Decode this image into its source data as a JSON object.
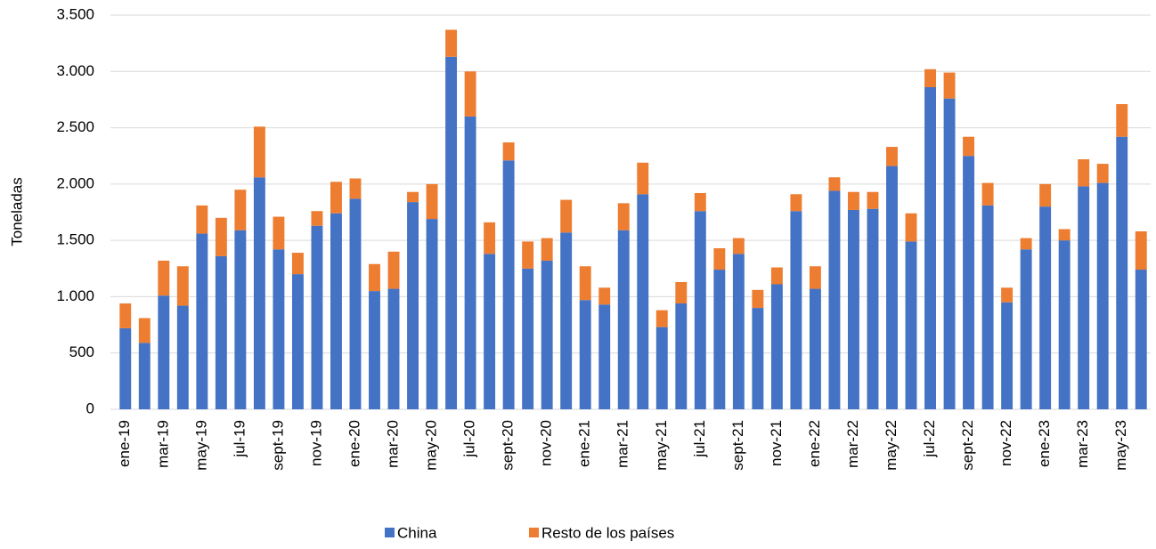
{
  "chart_data": {
    "type": "stacked-bar",
    "y_label": "Toneladas",
    "categories": [
      "ene-19",
      null,
      "mar-19",
      null,
      "may-19",
      null,
      "jul-19",
      null,
      "sept-19",
      null,
      "nov-19",
      null,
      "ene-20",
      null,
      "mar-20",
      null,
      "may-20",
      null,
      "jul-20",
      null,
      "sept-20",
      null,
      "nov-20",
      null,
      "ene-21",
      null,
      "mar-21",
      null,
      "may-21",
      null,
      "jul-21",
      null,
      "sept-21",
      null,
      "nov-21",
      null,
      "ene-22",
      null,
      "mar-22",
      null,
      "may-22",
      null,
      "jul-22",
      null,
      "sept-22",
      null,
      "nov-22",
      null,
      "ene-23",
      null,
      "mar-23",
      null,
      "may-23",
      null
    ],
    "series": [
      {
        "name": "China",
        "color": "#4472c4",
        "values": [
          720,
          590,
          1010,
          920,
          1560,
          1360,
          1590,
          2060,
          1420,
          1200,
          1630,
          1740,
          1870,
          1050,
          1070,
          1840,
          1690,
          3130,
          2600,
          1380,
          2210,
          1250,
          1320,
          1570,
          970,
          930,
          1590,
          1910,
          730,
          940,
          1760,
          1240,
          1380,
          900,
          1110,
          1760,
          1070,
          1940,
          1770,
          1780,
          2160,
          1490,
          2860,
          2760,
          2250,
          1810,
          950,
          1420,
          1800,
          1500,
          1980,
          2010,
          2420,
          1240
        ]
      },
      {
        "name": "Resto de los países",
        "color": "#ed7d31",
        "values": [
          220,
          220,
          310,
          350,
          250,
          340,
          360,
          450,
          290,
          190,
          130,
          280,
          180,
          240,
          330,
          90,
          310,
          240,
          400,
          280,
          160,
          240,
          200,
          290,
          300,
          150,
          240,
          280,
          150,
          190,
          160,
          190,
          140,
          160,
          150,
          150,
          200,
          120,
          160,
          150,
          170,
          250,
          160,
          230,
          170,
          200,
          130,
          100,
          200,
          100,
          240,
          170,
          290,
          340
        ]
      }
    ],
    "ylim": [
      0,
      3500
    ],
    "yticks": [
      0,
      500,
      {
        "value": 1000,
        "label": "1.000"
      },
      {
        "value": 1500,
        "label": "1.500"
      },
      {
        "value": 2000,
        "label": "2.000"
      },
      {
        "value": 2500,
        "label": "2.500"
      },
      {
        "value": 3000,
        "label": "3.000"
      },
      {
        "value": 3500,
        "label": "3.500"
      }
    ],
    "grid": true,
    "legend": "bottom"
  }
}
